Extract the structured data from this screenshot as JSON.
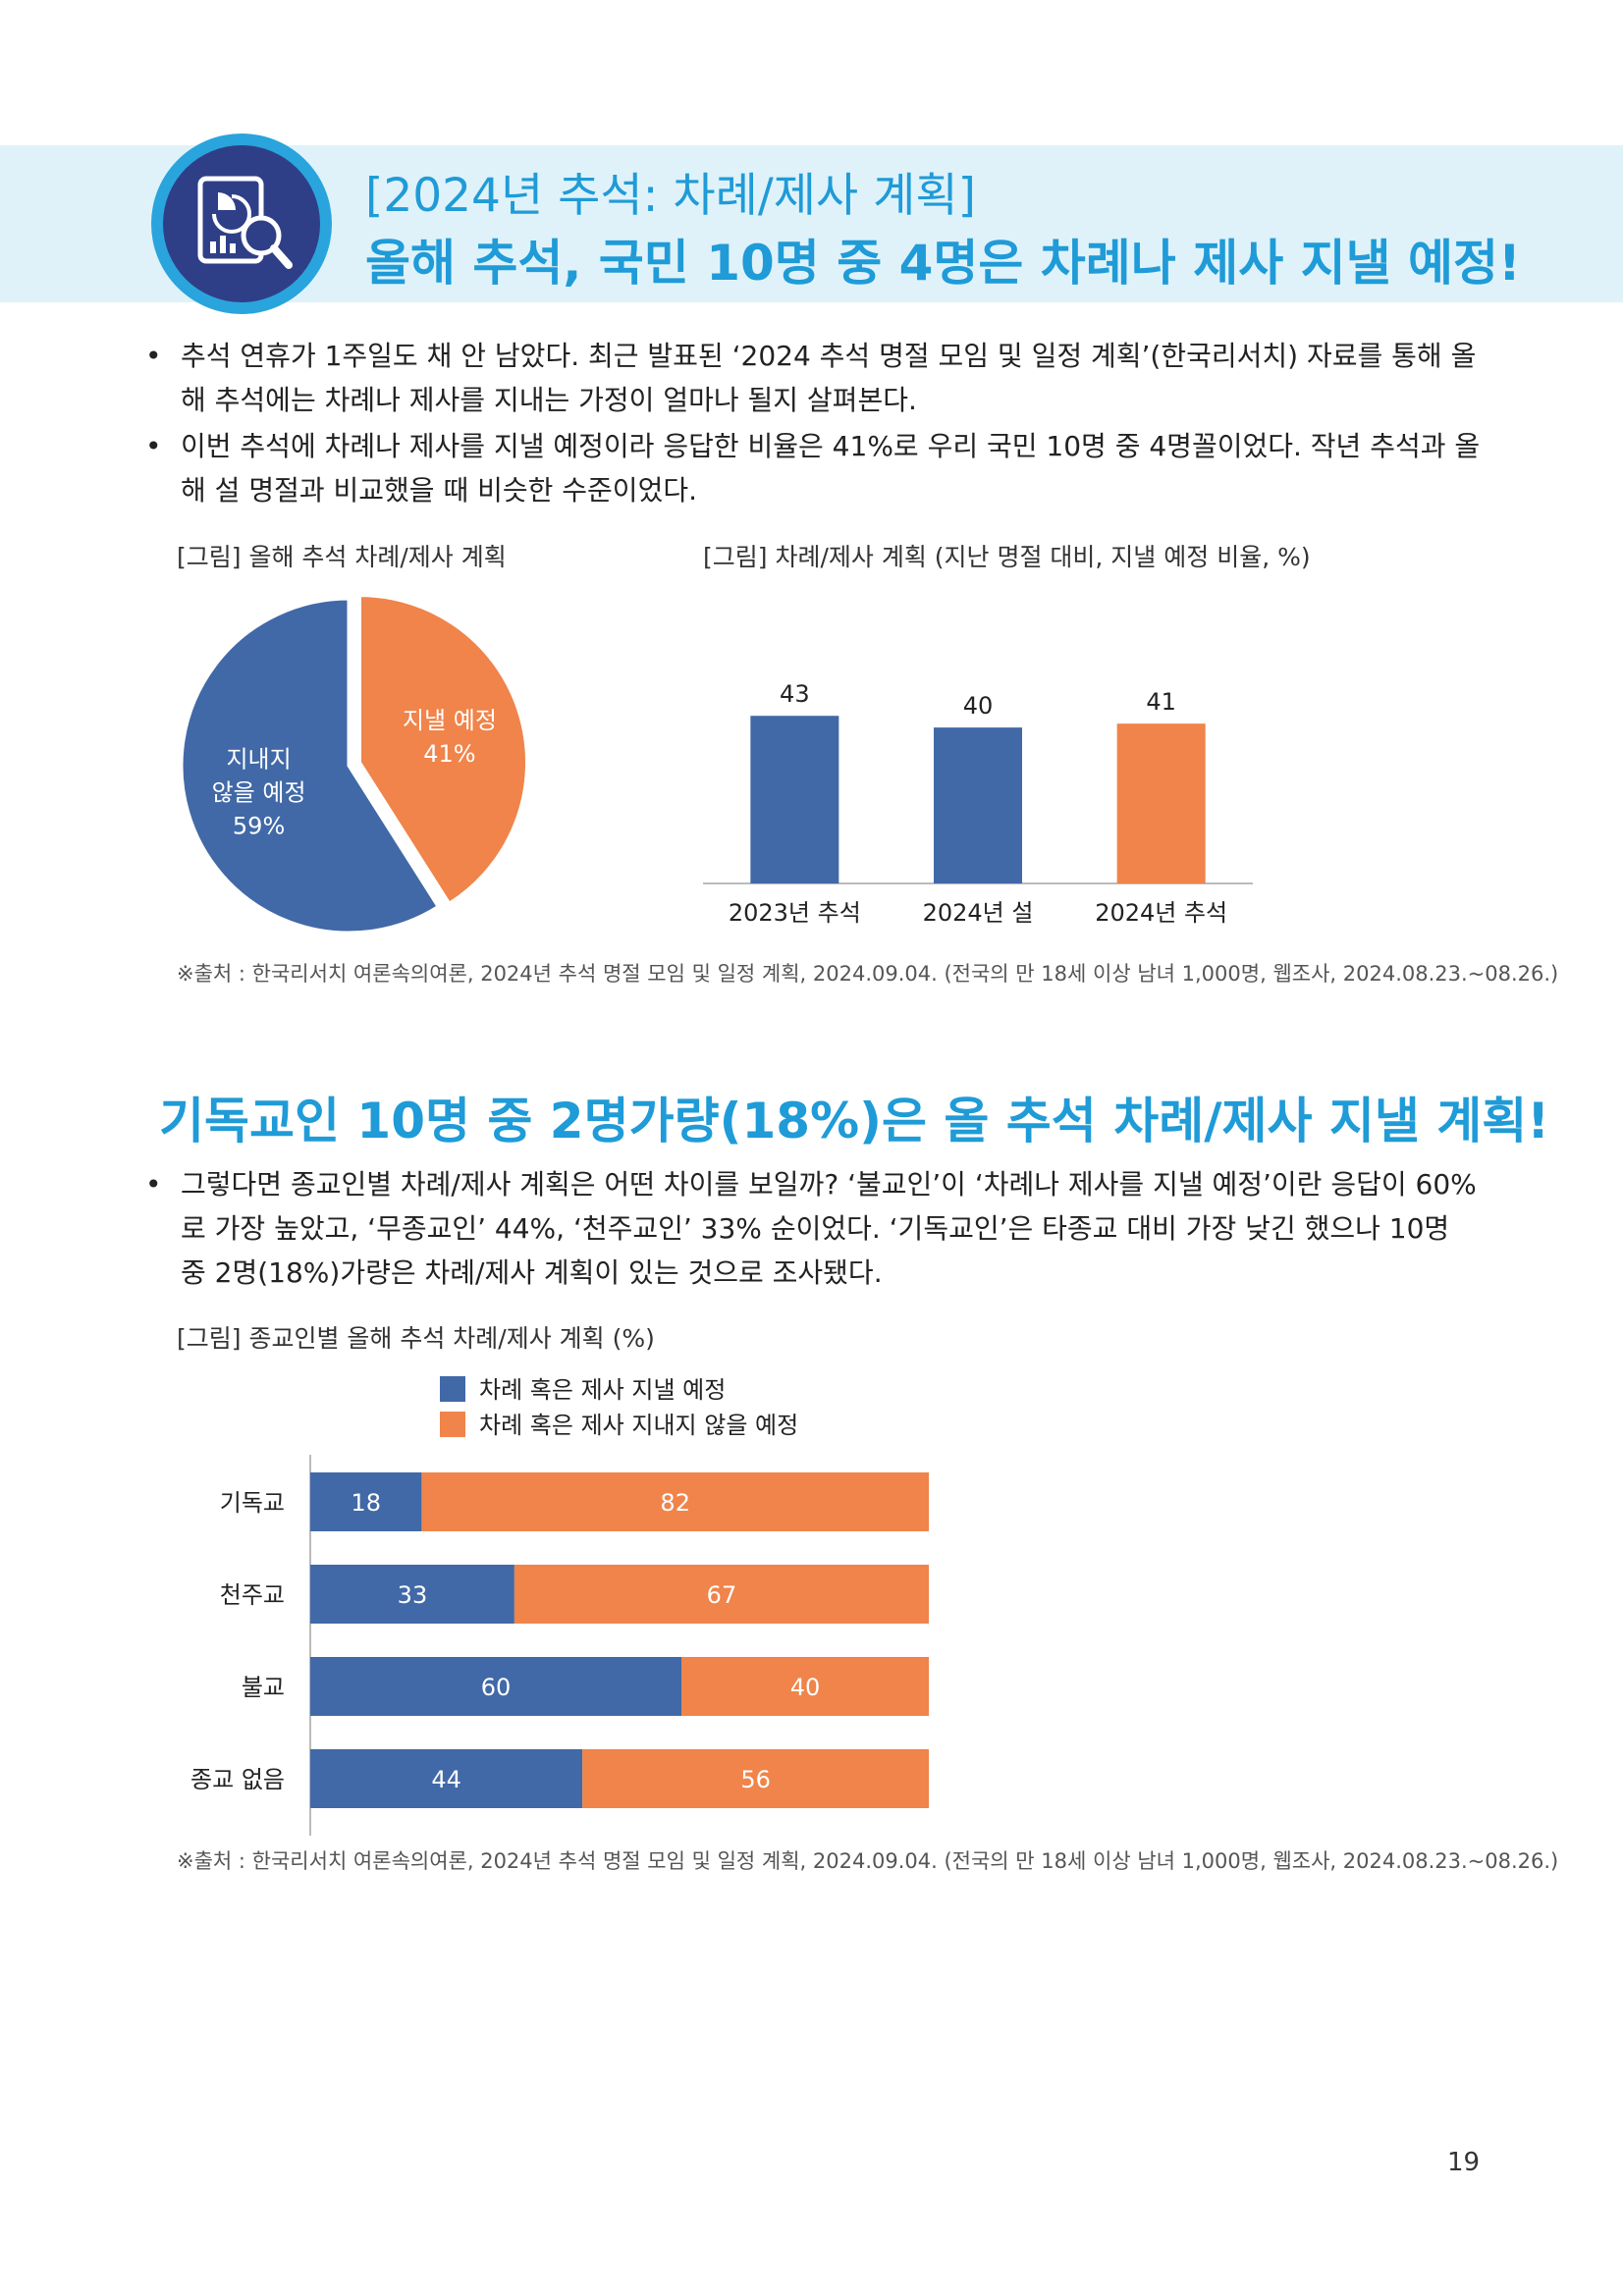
{
  "header": {
    "title_line1": "[2024년 추석: 차례/제사 계획]",
    "title_line2": "올해 추석, 국민 10명 중 4명은 차례나 제사 지낼 예정!",
    "icon": "chart-magnifier-icon"
  },
  "intro_bullets": [
    "추석 연휴가 1주일도 채 안 남았다. 최근 발표된 ‘2024 추석 명절 모임 및 일정 계획’(한국리서치) 자료를 통해 올해 추석에는 차례나 제사를 지내는 가정이 얼마나 될지 살펴본다.",
    "이번 추석에 차례나 제사를 지낼 예정이라 응답한 비율은 41%로 우리 국민 10명 중 4명꼴이었다. 작년 추석과 올해 설 명절과 비교했을 때 비슷한 수준이었다."
  ],
  "section2": {
    "heading": "기독교인 10명 중 2명가량(18%)은 올 추석 차례/제사 지낼 계획!",
    "bullets": [
      "그렇다면 종교인별 차례/제사 계획은 어떤 차이를 보일까? ‘불교인’이 ‘차례나 제사를 지낼 예정’이란 응답이 60%로 가장 높았고, ‘무종교인’ 44%, ‘천주교인’ 33% 순이었다. ‘기독교인’은 타종교 대비 가장 낮긴 했으나 10명 중 2명(18%)가량은 차례/제사 계획이 있는 것으로 조사됐다."
    ]
  },
  "source_text": "※출처 : 한국리서치 여론속의여론, 2024년 추석 명절 모임 및 일정 계획, 2024.09.04. (전국의 만 18세 이상 남녀 1,000명, 웹조사, 2024.08.23.~08.26.)",
  "page_number": "19",
  "colors": {
    "accent": "#1f9bd7",
    "blue": "#4169a7",
    "orange": "#f0844a",
    "banner": "#dff2fa"
  },
  "chart_data": [
    {
      "type": "pie",
      "title": "[그림] 올해 추석 차례/제사 계획",
      "slices": [
        {
          "label_lines": [
            "지낼 예정"
          ],
          "value": 41,
          "value_label": "41%",
          "color": "#f0844a"
        },
        {
          "label_lines": [
            "지내지",
            "않을 예정"
          ],
          "value": 59,
          "value_label": "59%",
          "color": "#4169a7"
        }
      ]
    },
    {
      "type": "bar",
      "title": "[그림] 차례/제사 계획 (지난 명절 대비, 지낼 예정 비율, %)",
      "categories": [
        "2023년 추석",
        "2024년 설",
        "2024년 추석"
      ],
      "values": [
        43,
        40,
        41
      ],
      "colors": [
        "#4169a7",
        "#4169a7",
        "#f0844a"
      ],
      "ylim": [
        0,
        50
      ]
    },
    {
      "type": "bar",
      "orientation": "horizontal-stacked",
      "title": "[그림] 종교인별 올해 추석 차례/제사 계획 (%)",
      "categories": [
        "기독교",
        "천주교",
        "불교",
        "종교 없음"
      ],
      "series": [
        {
          "name": "차례 혹은 제사 지낼 예정",
          "values": [
            18,
            33,
            60,
            44
          ],
          "color": "#4169a7"
        },
        {
          "name": "차례 혹은 제사 지내지 않을 예정",
          "values": [
            82,
            67,
            40,
            56
          ],
          "color": "#f0844a"
        }
      ],
      "xlim": [
        0,
        100
      ],
      "legend_position": "top"
    }
  ]
}
